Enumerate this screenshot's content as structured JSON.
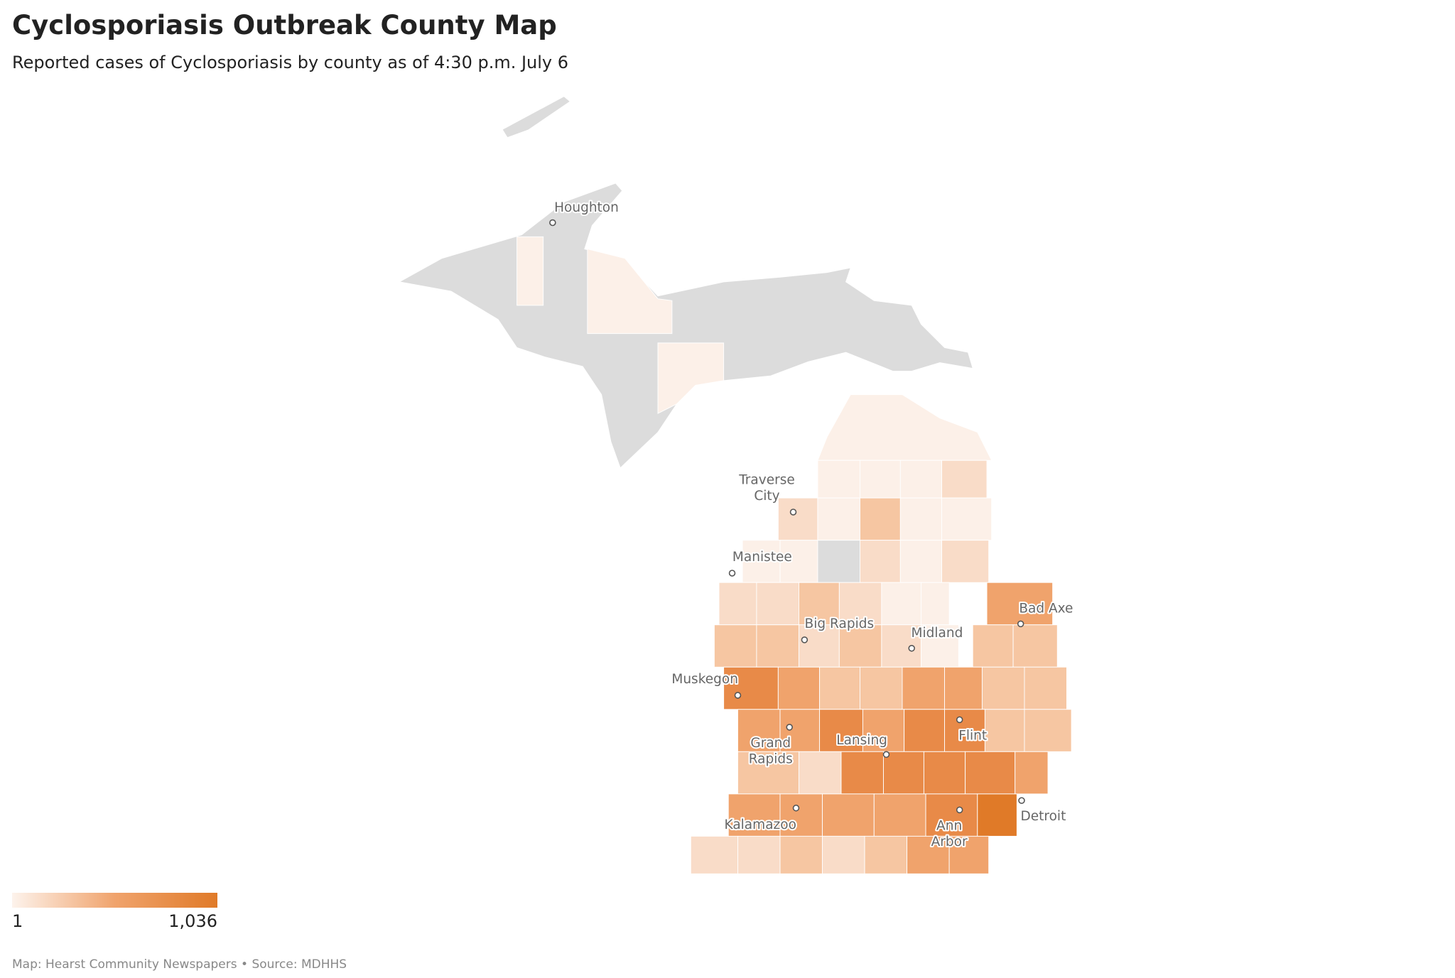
{
  "header": {
    "title": "Cyclosporiasis Outbreak County Map",
    "subtitle": "Reported cases of Cyclosporiasis by county as of 4:30 p.m. July 6"
  },
  "cities": [
    {
      "lines": [
        "Houghton"
      ]
    },
    {
      "lines": [
        "Traverse",
        "City"
      ]
    },
    {
      "lines": [
        "Manistee"
      ]
    },
    {
      "lines": [
        "Big Rapids"
      ]
    },
    {
      "lines": [
        "Midland"
      ]
    },
    {
      "lines": [
        "Bad Axe"
      ]
    },
    {
      "lines": [
        "Muskegon"
      ]
    },
    {
      "lines": [
        "Grand",
        "Rapids"
      ]
    },
    {
      "lines": [
        "Lansing"
      ]
    },
    {
      "lines": [
        "Flint"
      ]
    },
    {
      "lines": [
        "Kalamazoo"
      ]
    },
    {
      "lines": [
        "Ann",
        "Arbor"
      ]
    },
    {
      "lines": [
        "Detroit"
      ]
    }
  ],
  "legend": {
    "min": 1,
    "max": {
      "value": 1036,
      "label": "1,036"
    },
    "colors": [
      "#fdf3ec",
      "#f0a36c",
      "#e07a28"
    ]
  },
  "footer": "Map: Hearst Community Newspapers • Source: MDHHS"
}
